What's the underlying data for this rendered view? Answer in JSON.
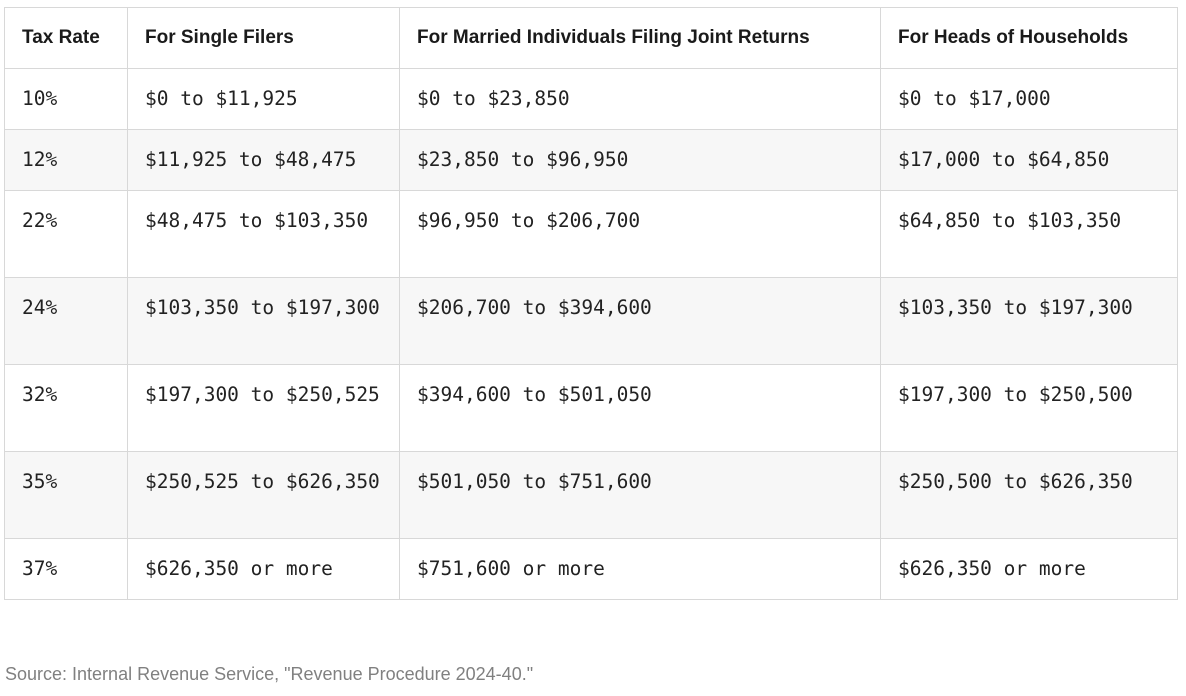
{
  "table": {
    "headers": [
      "Tax Rate",
      "For Single Filers",
      "For Married Individuals Filing Joint Returns",
      "For Heads of Households"
    ],
    "rows": [
      [
        "10%",
        "$0 to $11,925",
        "$0 to $23,850",
        "$0 to $17,000"
      ],
      [
        "12%",
        "$11,925 to $48,475",
        "$23,850 to $96,950",
        "$17,000 to $64,850"
      ],
      [
        "22%",
        "$48,475 to $103,350",
        "$96,950 to $206,700",
        "$64,850 to $103,350"
      ],
      [
        "24%",
        "$103,350 to $197,300",
        "$206,700 to $394,600",
        "$103,350 to $197,300"
      ],
      [
        "32%",
        "$197,300 to $250,525",
        "$394,600 to $501,050",
        "$197,300 to $250,500"
      ],
      [
        "35%",
        "$250,525 to $626,350",
        "$501,050 to $751,600",
        "$250,500 to $626,350"
      ],
      [
        "37%",
        "$626,350 or more",
        "$751,600 or more",
        "$626,350 or more"
      ]
    ]
  },
  "source": "Source: Internal Revenue Service, \"Revenue Procedure 2024-40.\"",
  "colors": {
    "border": "#d8d8d8",
    "stripe": "#f7f7f7",
    "header_text": "#1a1a1a",
    "body_text": "#222222",
    "source_text": "#808080"
  }
}
